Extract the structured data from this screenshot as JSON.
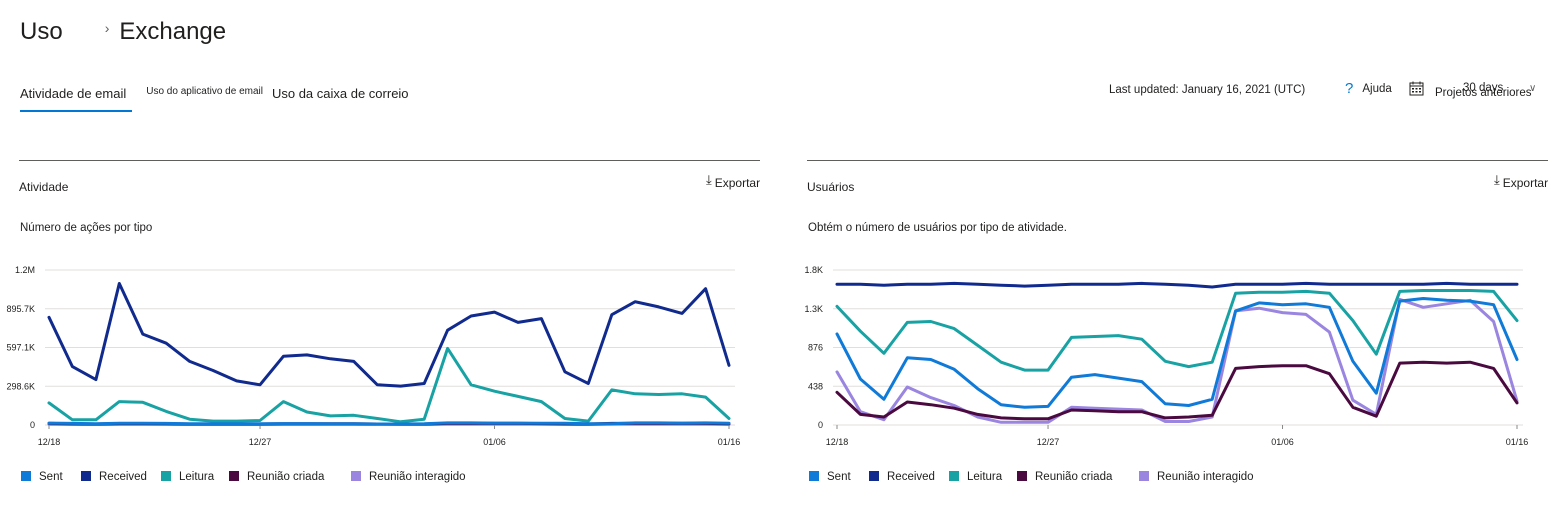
{
  "breadcrumb": {
    "root": "Uso",
    "current": "Exchange"
  },
  "tabs": [
    {
      "label": "Atividade de email"
    },
    {
      "label": "Uso do aplicativo de email"
    },
    {
      "label": "Uso da caixa de correio"
    }
  ],
  "toolbar": {
    "last_updated": "Last updated: January 16, 2021 (UTC)",
    "help_label": "Ajuda",
    "period_label": "Projetos anteriores",
    "period_value": "30 days"
  },
  "colors": {
    "accent": "#0078d4",
    "sent": "#0f7ad8",
    "received": "#102a8e",
    "leitura": "#18a2a3",
    "reuniao_criada": "#4a0a40",
    "reuniao_interagido": "#9a85e0",
    "grid": "#e1dfdd"
  },
  "icons": {
    "breadcrumb_separator": "chevron-right-icon",
    "help": "help-icon",
    "calendar": "calendar-icon",
    "dropdown": "chevron-down-icon",
    "export": "download-icon"
  },
  "panels": [
    {
      "title": "Atividade",
      "export_label": "Exportar",
      "subtitle": "Número de ações por tipo"
    },
    {
      "title": "Usuários",
      "export_label": "Exportar",
      "subtitle": "Obtém o número de usuários por tipo de atividade."
    }
  ],
  "chart_data": [
    {
      "type": "line",
      "y_ticks": [
        "0",
        "298.6K",
        "597.1K",
        "895.7K",
        "1.2M"
      ],
      "ylim": [
        0,
        1194000
      ],
      "x_ticks": [
        "12/18",
        "12/27",
        "01/06",
        "01/16"
      ],
      "x_tick_index": [
        0,
        9,
        19,
        29
      ],
      "grid": true,
      "legend_position": "bottom-left",
      "series": [
        {
          "name": "Sent",
          "values": [
            15000,
            12000,
            10000,
            14000,
            13000,
            12000,
            10000,
            9000,
            9000,
            10000,
            11000,
            11000,
            10000,
            10000,
            8000,
            8000,
            9000,
            16000,
            16000,
            15000,
            15000,
            14000,
            14000,
            9000,
            9000,
            16000,
            16000,
            15000,
            16000,
            14000
          ]
        },
        {
          "name": "Received",
          "values": [
            830000,
            450000,
            350000,
            1090000,
            700000,
            630000,
            490000,
            420000,
            340000,
            310000,
            530000,
            540000,
            510000,
            490000,
            310000,
            300000,
            320000,
            730000,
            840000,
            870000,
            790000,
            820000,
            410000,
            320000,
            850000,
            950000,
            910000,
            860000,
            1050000,
            460000
          ]
        },
        {
          "name": "Leitura",
          "values": [
            170000,
            40000,
            40000,
            180000,
            175000,
            105000,
            45000,
            30000,
            30000,
            35000,
            180000,
            100000,
            70000,
            75000,
            50000,
            25000,
            45000,
            590000,
            310000,
            260000,
            220000,
            180000,
            50000,
            30000,
            270000,
            240000,
            235000,
            240000,
            215000,
            50000
          ]
        },
        {
          "name": "Reunião criada",
          "values": [
            12000,
            10000,
            8000,
            11000,
            11000,
            10000,
            8000,
            8000,
            8000,
            8000,
            10000,
            10000,
            10000,
            10000,
            8000,
            7000,
            8000,
            12000,
            12000,
            12000,
            12000,
            11000,
            9000,
            8000,
            12000,
            12000,
            12000,
            12000,
            12000,
            10000
          ]
        },
        {
          "name": "Reunião interagido",
          "values": [
            5000,
            4000,
            4000,
            5000,
            5000,
            5000,
            4000,
            4000,
            4000,
            4000,
            5000,
            5000,
            5000,
            5000,
            4000,
            4000,
            4000,
            6000,
            6000,
            6000,
            6000,
            6000,
            4000,
            4000,
            6000,
            6000,
            6000,
            6000,
            6000,
            5000
          ]
        }
      ]
    },
    {
      "type": "line",
      "y_ticks": [
        "0",
        "438",
        "876",
        "1.3K",
        "1.8K"
      ],
      "ylim": [
        0,
        1752
      ],
      "x_ticks": [
        "12/18",
        "12/27",
        "01/06",
        "01/16"
      ],
      "x_tick_index": [
        0,
        9,
        19,
        29
      ],
      "grid": true,
      "legend_position": "bottom-left",
      "series": [
        {
          "name": "Sent",
          "values": [
            1030,
            520,
            290,
            760,
            740,
            630,
            410,
            230,
            200,
            210,
            540,
            570,
            530,
            490,
            240,
            220,
            290,
            1290,
            1380,
            1360,
            1370,
            1330,
            720,
            360,
            1400,
            1430,
            1410,
            1400,
            1360,
            740
          ]
        },
        {
          "name": "Received",
          "values": [
            1590,
            1590,
            1580,
            1590,
            1590,
            1600,
            1590,
            1580,
            1570,
            1580,
            1590,
            1590,
            1590,
            1600,
            1590,
            1580,
            1560,
            1590,
            1590,
            1590,
            1600,
            1590,
            1590,
            1590,
            1590,
            1590,
            1600,
            1590,
            1590,
            1590
          ]
        },
        {
          "name": "Leitura",
          "values": [
            1340,
            1060,
            810,
            1160,
            1170,
            1090,
            900,
            710,
            620,
            620,
            990,
            1000,
            1010,
            970,
            720,
            660,
            710,
            1490,
            1500,
            1500,
            1510,
            1490,
            1180,
            800,
            1510,
            1520,
            1520,
            1520,
            1510,
            1180
          ]
        },
        {
          "name": "Reunião criada",
          "values": [
            370,
            120,
            90,
            260,
            230,
            190,
            120,
            80,
            70,
            70,
            170,
            160,
            150,
            150,
            80,
            90,
            110,
            640,
            660,
            670,
            670,
            580,
            200,
            100,
            700,
            710,
            700,
            710,
            640,
            250
          ]
        },
        {
          "name": "Reunião interagido",
          "values": [
            600,
            150,
            60,
            430,
            310,
            220,
            90,
            30,
            30,
            30,
            200,
            190,
            180,
            170,
            40,
            40,
            90,
            1290,
            1320,
            1270,
            1250,
            1050,
            280,
            120,
            1420,
            1330,
            1370,
            1410,
            1170,
            270
          ]
        }
      ]
    }
  ]
}
